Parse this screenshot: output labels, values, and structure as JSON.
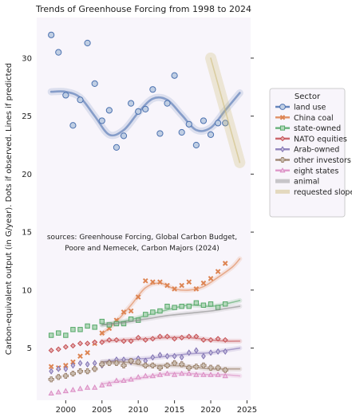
{
  "chart_data": {
    "type": "scatter",
    "title": "Trends of Greenhouse Forcing from 1998 to 2024",
    "ylabel": "Carbon-equivalent output (in G/year). Dots if observed. Lines if predicted",
    "xlabel": "",
    "xlim": [
      1996,
      2025.5
    ],
    "ylim": [
      0.5,
      33.5
    ],
    "xticks": [
      "2000",
      "2005",
      "2010",
      "2015",
      "2020",
      "2025"
    ],
    "yticks": [
      "5",
      "10",
      "15",
      "20",
      "25",
      "30"
    ],
    "grid": false,
    "legend_title": "Sector",
    "legend_position": "right",
    "annotation": [
      "sources: Greenhouse Forcing, Global Carbon Budget,",
      "Poore and Nemecek, Carbon Majors (2024)"
    ],
    "series": [
      {
        "name": "land use",
        "color": "#4C72B0",
        "marker": "o",
        "x": [
          1998,
          1999,
          2000,
          2001,
          2002,
          2003,
          2004,
          2005,
          2006,
          2007,
          2008,
          2009,
          2010,
          2011,
          2012,
          2013,
          2014,
          2015,
          2016,
          2017,
          2018,
          2019,
          2020,
          2021,
          2022
        ],
        "y": [
          32.0,
          30.5,
          26.8,
          24.2,
          26.4,
          31.3,
          27.8,
          24.6,
          25.5,
          22.3,
          23.3,
          26.1,
          25.4,
          25.6,
          27.3,
          23.5,
          26.1,
          28.5,
          23.6,
          24.3,
          22.5,
          24.6,
          23.4,
          24.4,
          24.4
        ],
        "trend_x": [
          1998,
          2000,
          2002,
          2004,
          2006,
          2008,
          2010,
          2012,
          2014,
          2016,
          2018,
          2020,
          2022,
          2024
        ],
        "trend_y": [
          27.1,
          27.1,
          26.6,
          25.0,
          23.4,
          23.8,
          25.3,
          26.5,
          26.4,
          25.1,
          23.8,
          24.0,
          25.5,
          27.0
        ]
      },
      {
        "name": "China coal",
        "color": "#DD8452",
        "marker": "x",
        "x": [
          1998,
          1999,
          2000,
          2001,
          2002,
          2003,
          2004,
          2005,
          2006,
          2007,
          2008,
          2009,
          2010,
          2011,
          2012,
          2013,
          2014,
          2015,
          2016,
          2017,
          2018,
          2019,
          2020,
          2021,
          2022
        ],
        "y": [
          3.4,
          3.3,
          3.5,
          3.8,
          4.3,
          4.6,
          5.4,
          6.3,
          6.7,
          7.4,
          8.1,
          8.2,
          9.4,
          10.8,
          10.7,
          10.7,
          10.4,
          10.1,
          10.4,
          10.7,
          10.1,
          10.6,
          11.0,
          11.6,
          12.3
        ],
        "trend_x": [
          2005,
          2007,
          2009,
          2011,
          2013,
          2015,
          2017,
          2019,
          2021,
          2023,
          2024
        ],
        "trend_y": [
          6.2,
          7.3,
          8.7,
          10.2,
          10.6,
          10.1,
          10.0,
          10.3,
          11.1,
          12.0,
          12.7
        ]
      },
      {
        "name": "state-owned",
        "color": "#55A868",
        "marker": "s",
        "x": [
          1998,
          1999,
          2000,
          2001,
          2002,
          2003,
          2004,
          2005,
          2006,
          2007,
          2008,
          2009,
          2010,
          2011,
          2012,
          2013,
          2014,
          2015,
          2016,
          2017,
          2018,
          2019,
          2020,
          2021,
          2022
        ],
        "y": [
          6.1,
          6.3,
          6.1,
          6.6,
          6.6,
          6.9,
          6.8,
          7.3,
          7.0,
          7.1,
          7.1,
          7.5,
          7.4,
          7.9,
          8.1,
          8.2,
          8.6,
          8.5,
          8.6,
          8.6,
          8.9,
          8.7,
          8.8,
          8.5,
          8.8
        ],
        "trend_x": [
          2005,
          2008,
          2011,
          2014,
          2017,
          2020,
          2022,
          2024
        ],
        "trend_y": [
          7.0,
          7.3,
          7.8,
          8.3,
          8.7,
          8.6,
          8.8,
          9.1
        ]
      },
      {
        "name": "NATO equities",
        "color": "#C44E52",
        "marker": "D",
        "x": [
          1998,
          1999,
          2000,
          2001,
          2002,
          2003,
          2004,
          2005,
          2006,
          2007,
          2008,
          2009,
          2010,
          2011,
          2012,
          2013,
          2014,
          2015,
          2016,
          2017,
          2018,
          2019,
          2020,
          2021,
          2022
        ],
        "y": [
          4.8,
          4.9,
          5.1,
          5.2,
          5.4,
          5.4,
          5.5,
          5.5,
          5.7,
          5.7,
          5.6,
          5.6,
          5.9,
          5.7,
          5.8,
          6.0,
          6.0,
          5.8,
          5.9,
          6.0,
          6.0,
          5.7,
          5.7,
          5.8,
          5.7
        ],
        "trend_x": [
          2005,
          2008,
          2011,
          2014,
          2017,
          2020,
          2022,
          2024
        ],
        "trend_y": [
          5.6,
          5.7,
          5.8,
          5.9,
          5.9,
          5.7,
          5.6,
          5.6
        ]
      },
      {
        "name": "Arab-owned",
        "color": "#8172B3",
        "marker": "d",
        "x": [
          1998,
          1999,
          2000,
          2001,
          2002,
          2003,
          2004,
          2005,
          2006,
          2007,
          2008,
          2009,
          2010,
          2011,
          2012,
          2013,
          2014,
          2015,
          2016,
          2017,
          2018,
          2019,
          2020,
          2021,
          2022
        ],
        "y": [
          3.0,
          3.2,
          3.2,
          3.5,
          3.7,
          3.6,
          3.7,
          3.5,
          3.8,
          4.0,
          4.0,
          3.8,
          4.1,
          3.9,
          4.2,
          4.4,
          4.3,
          4.3,
          4.2,
          4.6,
          4.8,
          4.3,
          4.6,
          4.7,
          4.7
        ],
        "trend_x": [
          2005,
          2008,
          2011,
          2014,
          2017,
          2020,
          2022,
          2024
        ],
        "trend_y": [
          3.8,
          4.0,
          4.1,
          4.3,
          4.5,
          4.6,
          4.8,
          5.0
        ]
      },
      {
        "name": "other investors",
        "color": "#937860",
        "marker": "P",
        "x": [
          1998,
          1999,
          2000,
          2001,
          2002,
          2003,
          2004,
          2005,
          2006,
          2007,
          2008,
          2009,
          2010,
          2011,
          2012,
          2013,
          2014,
          2015,
          2016,
          2017,
          2018,
          2019,
          2020,
          2021,
          2022
        ],
        "y": [
          2.3,
          2.5,
          2.6,
          2.8,
          3.0,
          3.0,
          3.2,
          3.6,
          3.7,
          3.7,
          3.5,
          3.9,
          3.8,
          3.5,
          3.5,
          3.3,
          3.5,
          3.7,
          3.6,
          3.3,
          3.4,
          3.5,
          3.3,
          3.3,
          3.1
        ],
        "trend_x": [
          2005,
          2008,
          2011,
          2014,
          2017,
          2020,
          2022,
          2024
        ],
        "trend_y": [
          3.8,
          3.8,
          3.5,
          3.5,
          3.4,
          3.2,
          3.2,
          3.2
        ]
      },
      {
        "name": "eight states",
        "color": "#DA8BC3",
        "marker": "^",
        "x": [
          1998,
          1999,
          2000,
          2001,
          2002,
          2003,
          2004,
          2005,
          2006,
          2007,
          2008,
          2009,
          2010,
          2011,
          2012,
          2013,
          2014,
          2015,
          2016,
          2017,
          2018,
          2019,
          2020,
          2021,
          2022
        ],
        "y": [
          1.1,
          1.2,
          1.3,
          1.4,
          1.5,
          1.6,
          1.6,
          1.8,
          1.9,
          2.2,
          2.2,
          2.3,
          2.5,
          2.6,
          2.6,
          2.7,
          2.8,
          2.7,
          2.8,
          2.8,
          2.7,
          2.7,
          2.7,
          2.7,
          2.6
        ],
        "trend_x": [
          2005,
          2008,
          2011,
          2014,
          2017,
          2020,
          2022,
          2024
        ],
        "trend_y": [
          1.9,
          2.2,
          2.5,
          2.8,
          2.8,
          2.7,
          2.7,
          2.6
        ]
      },
      {
        "name": "animal",
        "color": "#8C8C8C",
        "marker": "line",
        "x": [],
        "y": [],
        "trend_x": [
          2005,
          2008,
          2011,
          2014,
          2017,
          2020,
          2022,
          2024
        ],
        "trend_y": [
          7.0,
          7.2,
          7.5,
          7.8,
          8.0,
          8.2,
          8.4,
          8.6
        ]
      },
      {
        "name": "requested slope",
        "color": "#CCB974",
        "marker": "line",
        "x": [],
        "y": [],
        "trend_x": [
          2020,
          2024
        ],
        "trend_y": [
          30.0,
          21.0
        ]
      }
    ]
  }
}
